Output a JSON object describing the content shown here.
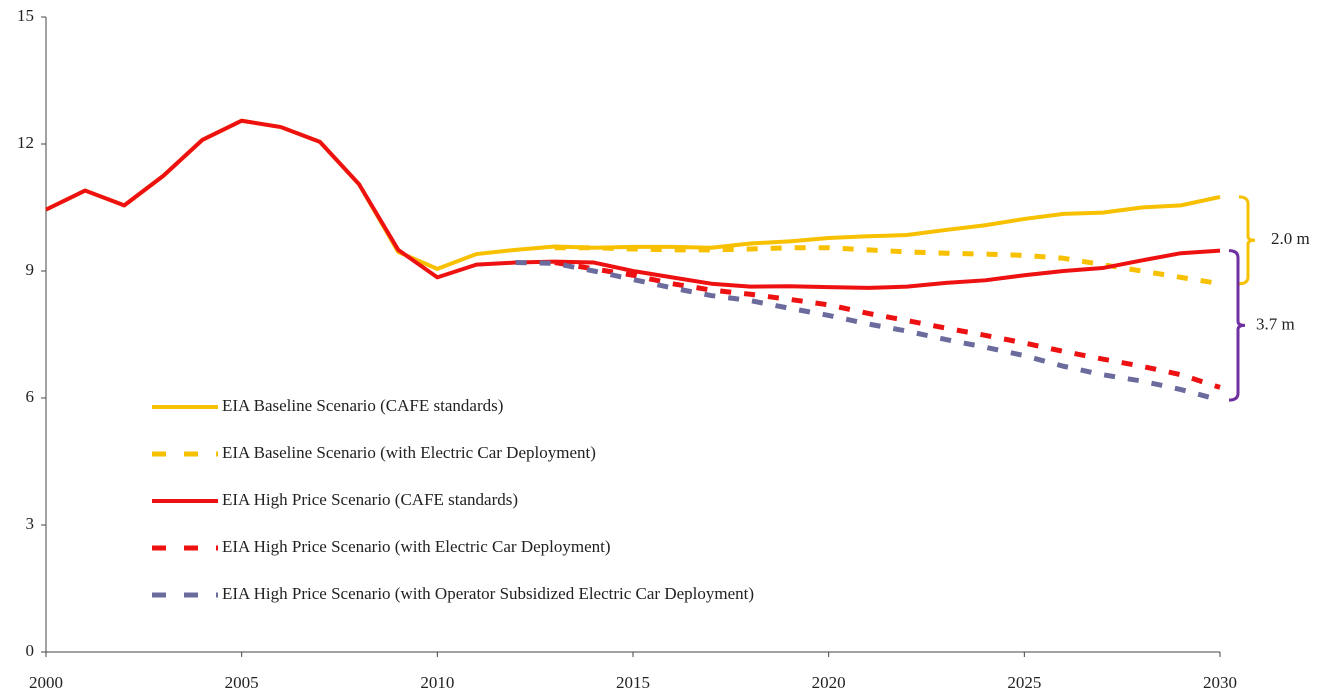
{
  "chart_data": {
    "type": "line",
    "x": [
      2000,
      2001,
      2002,
      2003,
      2004,
      2005,
      2006,
      2007,
      2008,
      2009,
      2010,
      2011,
      2012,
      2013,
      2014,
      2015,
      2016,
      2017,
      2018,
      2019,
      2020,
      2021,
      2022,
      2023,
      2024,
      2025,
      2026,
      2027,
      2028,
      2029,
      2030
    ],
    "series": [
      {
        "name": "EIA Baseline Scenario (CAFE standards)",
        "color": "#f7c000",
        "dash": false,
        "values": [
          10.45,
          10.9,
          10.55,
          11.25,
          12.1,
          12.55,
          12.4,
          12.05,
          11.05,
          9.45,
          9.05,
          9.4,
          9.5,
          9.58,
          9.55,
          9.57,
          9.57,
          9.55,
          9.65,
          9.7,
          9.78,
          9.82,
          9.85,
          9.97,
          10.08,
          10.23,
          10.35,
          10.38,
          10.5,
          10.55,
          10.75
        ]
      },
      {
        "name": "EIA Baseline Scenario (with Electric Car Deployment)",
        "color": "#f7c000",
        "dash": true,
        "values": [
          null,
          null,
          null,
          null,
          null,
          null,
          null,
          null,
          null,
          null,
          null,
          null,
          null,
          9.55,
          9.55,
          9.52,
          9.5,
          9.5,
          9.52,
          9.55,
          9.55,
          9.5,
          9.45,
          9.42,
          9.4,
          9.37,
          9.3,
          9.15,
          9.0,
          8.85,
          8.7
        ]
      },
      {
        "name": "EIA High Price Scenario (CAFE standards)",
        "color": "#ee1111",
        "dash": false,
        "values": [
          10.45,
          10.9,
          10.55,
          11.25,
          12.1,
          12.55,
          12.4,
          12.05,
          11.05,
          9.5,
          8.85,
          9.15,
          9.2,
          9.22,
          9.2,
          9.0,
          8.85,
          8.7,
          8.63,
          8.64,
          8.62,
          8.6,
          8.63,
          8.72,
          8.78,
          8.9,
          9.0,
          9.07,
          9.25,
          9.42,
          9.48
        ]
      },
      {
        "name": "EIA High Price Scenario (with Electric Car Deployment)",
        "color": "#ee1111",
        "dash": true,
        "values": [
          null,
          null,
          null,
          null,
          null,
          null,
          null,
          null,
          null,
          null,
          null,
          null,
          null,
          9.2,
          9.05,
          8.9,
          8.7,
          8.55,
          8.45,
          8.33,
          8.2,
          8.0,
          7.83,
          7.65,
          7.48,
          7.3,
          7.1,
          6.92,
          6.75,
          6.55,
          6.25
        ]
      },
      {
        "name": "EIA High Price Scenario (with Operator Subsidized Electric Car Deployment)",
        "color": "#6b6b9e",
        "dash": true,
        "values": [
          null,
          null,
          null,
          null,
          null,
          null,
          null,
          null,
          null,
          null,
          null,
          null,
          9.2,
          9.18,
          9.0,
          8.8,
          8.6,
          8.42,
          8.3,
          8.12,
          7.95,
          7.75,
          7.58,
          7.38,
          7.2,
          7.0,
          6.75,
          6.55,
          6.4,
          6.2,
          5.95
        ]
      }
    ],
    "annotations": [
      {
        "text": "2.0 m",
        "color": "#f7c000"
      },
      {
        "text": "3.7 m",
        "color": "#7030a0"
      }
    ],
    "xlim": [
      2000,
      2030
    ],
    "xticks": [
      2000,
      2005,
      2010,
      2015,
      2020,
      2025,
      2030
    ],
    "ylim": [
      0,
      15
    ],
    "yticks": [
      0,
      3,
      6,
      9,
      12,
      15
    ],
    "grid": false,
    "legend": "lower left"
  }
}
